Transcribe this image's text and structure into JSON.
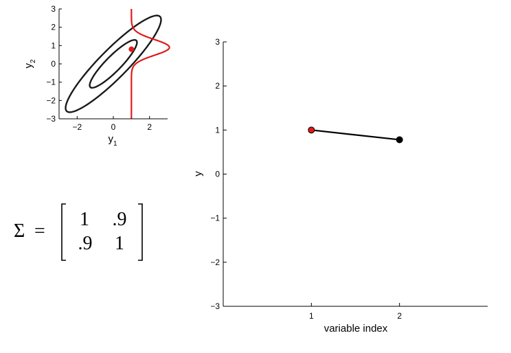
{
  "chart_data": [
    {
      "type": "scatter",
      "description_shapes": "contour",
      "xlabel": "y",
      "xlabel_sub": "1",
      "ylabel": "y",
      "ylabel_sub": "2",
      "xlim": [
        -3,
        3
      ],
      "ylim": [
        -3,
        3
      ],
      "xticks": [
        -2,
        0,
        2
      ],
      "xtick_labels": [
        "−2",
        "0",
        "2"
      ],
      "yticks": [
        -3,
        -2,
        -1,
        0,
        1,
        2,
        3
      ],
      "ytick_labels": [
        "−3",
        "−2",
        "−1",
        "0",
        "1",
        "2",
        "3"
      ],
      "point": {
        "x": 1,
        "y": 0.8,
        "color": "#e01a1a"
      },
      "contours": [
        {
          "a": 1.8,
          "b": 0.42,
          "angle_deg": 45
        },
        {
          "a": 3.65,
          "b": 0.78,
          "angle_deg": 45
        }
      ],
      "conditional_density": {
        "x0": 1,
        "mean": 0.9,
        "sd": 0.43,
        "scale": 2.1,
        "color": "#e01a1a"
      },
      "line_color": "#1a1a1a"
    },
    {
      "type": "line",
      "xlabel": "variable index",
      "ylabel": "y",
      "xlim": [
        0,
        3
      ],
      "ylim": [
        -3,
        3
      ],
      "xticks": [
        1,
        2
      ],
      "xtick_labels": [
        "1",
        "2"
      ],
      "yticks": [
        -3,
        -2,
        -1,
        0,
        1,
        2,
        3
      ],
      "ytick_labels": [
        "−3",
        "−2",
        "−1",
        "0",
        "1",
        "2",
        "3"
      ],
      "x": [
        1,
        2
      ],
      "y": [
        1.0,
        0.78
      ],
      "point_colors": [
        "#e01a1a",
        "#000000"
      ]
    }
  ],
  "matrix": {
    "symbol": "Σ",
    "equals": "=",
    "rows": [
      [
        "1",
        ".9"
      ],
      [
        ".9",
        "1"
      ]
    ]
  }
}
